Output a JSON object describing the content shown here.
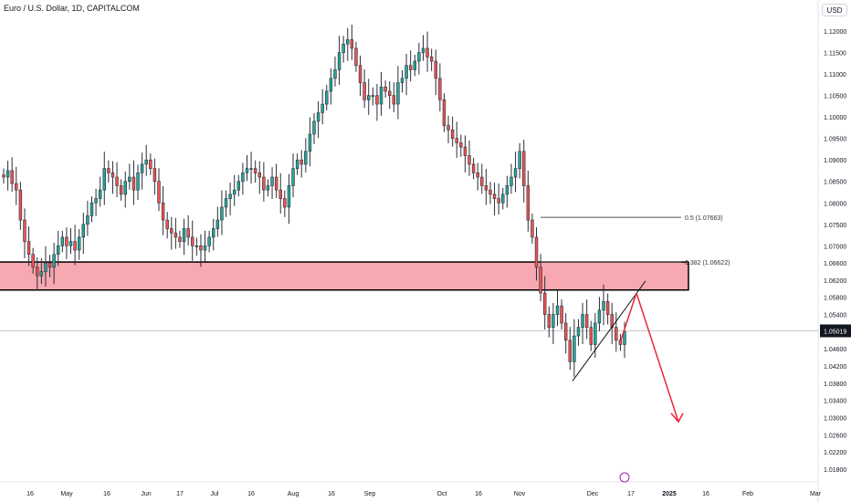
{
  "header": {
    "title": "Euro / U.S. Dollar, 1D, CAPITALCOM",
    "currency": "USD"
  },
  "chart_data": {
    "type": "candlestick",
    "symbol": "Euro / U.S. Dollar",
    "interval": "1D",
    "source": "CAPITALCOM",
    "ylim": [
      1.015,
      1.123
    ],
    "y_ticks": [
      "1.12000",
      "1.11500",
      "1.11000",
      "1.10500",
      "1.10000",
      "1.09500",
      "1.09000",
      "1.08500",
      "1.08000",
      "1.07500",
      "1.07000",
      "1.06600",
      "1.06200",
      "1.05800",
      "1.05400",
      "1.05019",
      "1.04600",
      "1.04200",
      "1.03800",
      "1.03400",
      "1.03000",
      "1.02600",
      "1.02200",
      "1.01800"
    ],
    "x_ticks": [
      "16",
      "May",
      "16",
      "Jun",
      "17",
      "Jul",
      "16",
      "Aug",
      "16",
      "Sep",
      "Oct",
      "16",
      "Nov",
      "Dec",
      "17",
      "2025",
      "16",
      "Feb",
      "Mar"
    ],
    "current_price": "1.05019",
    "candles_close": [
      1.086,
      1.0875,
      1.0845,
      1.083,
      1.076,
      1.071,
      1.068,
      1.065,
      1.063,
      1.064,
      1.066,
      1.065,
      1.068,
      1.07,
      1.072,
      1.07,
      1.071,
      1.069,
      1.072,
      1.075,
      1.077,
      1.08,
      1.081,
      1.083,
      1.088,
      1.087,
      1.086,
      1.084,
      1.082,
      1.085,
      1.086,
      1.083,
      1.087,
      1.089,
      1.09,
      1.088,
      1.085,
      1.08,
      1.076,
      1.074,
      1.073,
      1.072,
      1.071,
      1.074,
      1.072,
      1.07,
      1.07,
      1.069,
      1.07,
      1.072,
      1.074,
      1.076,
      1.079,
      1.081,
      1.082,
      1.083,
      1.085,
      1.087,
      1.088,
      1.088,
      1.087,
      1.086,
      1.083,
      1.084,
      1.086,
      1.083,
      1.081,
      1.079,
      1.084,
      1.088,
      1.09,
      1.089,
      1.092,
      1.096,
      1.099,
      1.101,
      1.103,
      1.106,
      1.109,
      1.111,
      1.115,
      1.117,
      1.118,
      1.116,
      1.112,
      1.108,
      1.104,
      1.105,
      1.105,
      1.103,
      1.107,
      1.106,
      1.105,
      1.103,
      1.108,
      1.109,
      1.112,
      1.111,
      1.113,
      1.115,
      1.116,
      1.114,
      1.113,
      1.109,
      1.104,
      1.098,
      1.097,
      1.095,
      1.094,
      1.093,
      1.091,
      1.089,
      1.087,
      1.086,
      1.084,
      1.083,
      1.082,
      1.081,
      1.08,
      1.082,
      1.084,
      1.086,
      1.088,
      1.092,
      1.084,
      1.076,
      1.072,
      1.065,
      1.059,
      1.054,
      1.051,
      1.054,
      1.056,
      1.052,
      1.048,
      1.043,
      1.049,
      1.051,
      1.054,
      1.051,
      1.047,
      1.052,
      1.055,
      1.057,
      1.054,
      1.051,
      1.048,
      1.047,
      1.05
    ],
    "fib_levels": [
      {
        "label": "0.5 (1.07663)",
        "price": 1.07663
      },
      {
        "label": "0.382 (1.06622)",
        "price": 1.06622
      }
    ],
    "zone": {
      "top": 1.06622,
      "bottom": 1.0597
    },
    "colors": {
      "up": "#26a69a",
      "down": "#ef5350",
      "zone_fill": "#f7a8b0",
      "arrow": "#e8283c"
    },
    "grid": false
  }
}
